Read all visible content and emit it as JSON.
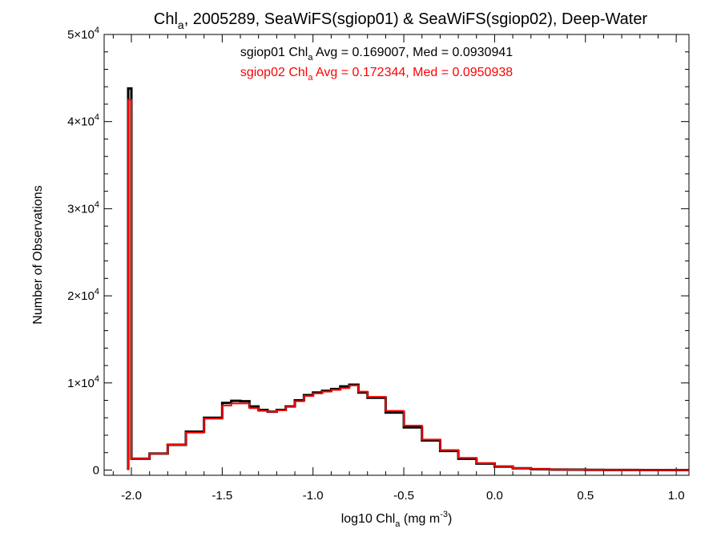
{
  "chart_data": {
    "type": "line",
    "title": {
      "prefix": "Chl",
      "sub": "a",
      "rest": ", 2005289, SeaWiFS(sgiop01) & SeaWiFS(sgiop02), Deep-Water"
    },
    "xlabel": {
      "prefix": "log10 Chl",
      "sub": "a",
      "mid": " (mg m",
      "sup": "-3",
      "suffix": ")"
    },
    "ylabel": "Number of Observations",
    "xlim": [
      -2.15,
      1.07
    ],
    "ylim": [
      -600,
      50000
    ],
    "x_ticks": [
      {
        "value": -2.0,
        "label": "-2.0"
      },
      {
        "value": -1.5,
        "label": "-1.5"
      },
      {
        "value": -1.0,
        "label": "-1.0"
      },
      {
        "value": -0.5,
        "label": "-0.5"
      },
      {
        "value": 0.0,
        "label": "0.0"
      },
      {
        "value": 0.5,
        "label": "0.5"
      },
      {
        "value": 1.0,
        "label": "1.0"
      }
    ],
    "y_ticks": [
      {
        "value": 0,
        "label": "0"
      },
      {
        "value": 10000,
        "label": "1×10",
        "exp": "4"
      },
      {
        "value": 20000,
        "label": "2×10",
        "exp": "4"
      },
      {
        "value": 30000,
        "label": "3×10",
        "exp": "4"
      },
      {
        "value": 40000,
        "label": "4×10",
        "exp": "4"
      },
      {
        "value": 50000,
        "label": "5×10",
        "exp": "4"
      }
    ],
    "legend_placement": "top-center",
    "grid": false,
    "series": [
      {
        "name": "sgiop01",
        "color": "#000000",
        "label": {
          "prefix": "sgiop01 Chl",
          "sub": "a",
          "rest": " Avg = 0.169007, Med = 0.0930941"
        },
        "spike": {
          "x": -2.0,
          "y": 43800
        },
        "x": [
          -2.0,
          -1.9,
          -1.8,
          -1.7,
          -1.6,
          -1.5,
          -1.45,
          -1.4,
          -1.35,
          -1.3,
          -1.25,
          -1.2,
          -1.15,
          -1.1,
          -1.05,
          -1.0,
          -0.95,
          -0.9,
          -0.85,
          -0.8,
          -0.75,
          -0.7,
          -0.6,
          -0.5,
          -0.4,
          -0.3,
          -0.2,
          -0.1,
          0.0,
          0.1,
          0.2,
          0.3,
          0.4,
          0.5,
          0.6,
          0.7,
          0.8,
          1.07
        ],
        "y": [
          1300,
          1900,
          2900,
          4400,
          6000,
          7700,
          7950,
          7900,
          7300,
          6900,
          6700,
          6900,
          7300,
          8000,
          8600,
          8900,
          9100,
          9300,
          9600,
          9800,
          8900,
          8300,
          6600,
          4900,
          3400,
          2200,
          1300,
          750,
          400,
          200,
          100,
          60,
          40,
          20,
          10,
          5,
          0,
          0
        ]
      },
      {
        "name": "sgiop02",
        "color": "#ff0000",
        "label": {
          "prefix": "sgiop02 Chl",
          "sub": "a",
          "rest": " Avg = 0.172344, Med = 0.0950938"
        },
        "spike": {
          "x": -2.0,
          "y": 42500
        },
        "x": [
          -2.0,
          -1.9,
          -1.8,
          -1.7,
          -1.6,
          -1.5,
          -1.45,
          -1.4,
          -1.35,
          -1.3,
          -1.25,
          -1.2,
          -1.15,
          -1.1,
          -1.05,
          -1.0,
          -0.95,
          -0.9,
          -0.85,
          -0.8,
          -0.75,
          -0.7,
          -0.6,
          -0.5,
          -0.4,
          -0.3,
          -0.2,
          -0.1,
          0.0,
          0.1,
          0.2,
          0.3,
          0.4,
          0.5,
          0.6,
          0.7,
          0.8,
          1.07
        ],
        "y": [
          1300,
          1900,
          2900,
          4300,
          5900,
          7400,
          7650,
          7650,
          7100,
          6800,
          6700,
          6850,
          7250,
          7900,
          8500,
          8800,
          9000,
          9200,
          9400,
          9700,
          9000,
          8400,
          6800,
          5100,
          3500,
          2300,
          1400,
          800,
          450,
          220,
          110,
          65,
          40,
          20,
          10,
          5,
          0,
          0
        ]
      }
    ]
  }
}
